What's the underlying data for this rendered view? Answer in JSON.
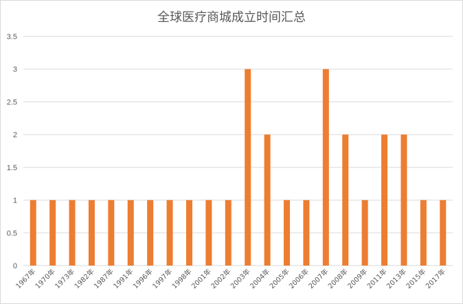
{
  "chart_data": {
    "type": "bar",
    "title": "全球医疗商城成立时间汇总",
    "xlabel": "",
    "ylabel": "",
    "categories": [
      "1967年",
      "1970年",
      "1973年",
      "1982年",
      "1987年",
      "1991年",
      "1996年",
      "1997年",
      "1998年",
      "2001年",
      "2002年",
      "2003年",
      "2004年",
      "2005年",
      "2006年",
      "2007年",
      "2008年",
      "2009年",
      "2011年",
      "2013年",
      "2015年",
      "2017年"
    ],
    "values": [
      1,
      1,
      1,
      1,
      1,
      1,
      1,
      1,
      1,
      1,
      1,
      3,
      2,
      1,
      1,
      3,
      2,
      1,
      2,
      2,
      1,
      1
    ],
    "ylim": [
      0,
      3.5
    ],
    "yticks": [
      "0",
      "0.5",
      "1",
      "1.5",
      "2",
      "2.5",
      "3",
      "3.5"
    ],
    "grid": true,
    "bar_color": "#ED7D31",
    "grid_color": "#d9d9d9"
  }
}
